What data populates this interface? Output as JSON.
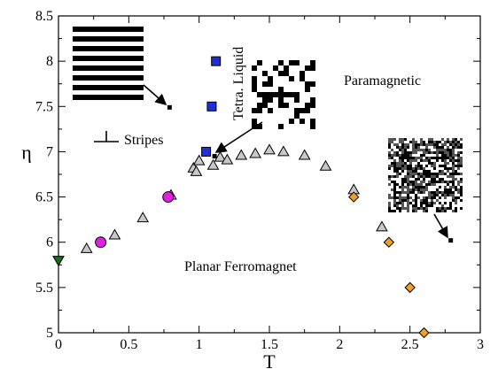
{
  "chart_data": {
    "type": "scatter",
    "xlabel": "T",
    "ylabel": "η",
    "xlim": [
      0,
      3
    ],
    "ylim": [
      5,
      8.5
    ],
    "x_ticks": [
      "0",
      "0.5",
      "1",
      "1.5",
      "2",
      "2.5",
      "3"
    ],
    "y_ticks": [
      "5",
      "5.5",
      "6",
      "6.5",
      "7",
      "7.5",
      "8",
      "8.5"
    ],
    "grid": false,
    "legend": "none",
    "annotations": {
      "paramagnetic": "Paramagnetic",
      "planar": "Planar Ferromagnet",
      "stripes": "Stripes",
      "tetra_liquid": "Tetra. Liquid"
    },
    "series": [
      {
        "marker": "triangle",
        "color": "#c8c8c8",
        "points": [
          {
            "x": 0.2,
            "y": 5.93
          },
          {
            "x": 0.4,
            "y": 6.08
          },
          {
            "x": 0.6,
            "y": 6.27
          },
          {
            "x": 0.8,
            "y": 6.52
          },
          {
            "x": 0.96,
            "y": 6.82
          },
          {
            "x": 0.98,
            "y": 6.78
          },
          {
            "x": 1.0,
            "y": 6.9
          },
          {
            "x": 1.1,
            "y": 6.85
          },
          {
            "x": 1.15,
            "y": 6.94
          },
          {
            "x": 1.2,
            "y": 6.91
          },
          {
            "x": 1.3,
            "y": 6.96
          },
          {
            "x": 1.4,
            "y": 6.98
          },
          {
            "x": 1.5,
            "y": 7.02
          },
          {
            "x": 1.6,
            "y": 7.0
          },
          {
            "x": 1.75,
            "y": 6.96
          },
          {
            "x": 1.9,
            "y": 6.84
          },
          {
            "x": 2.1,
            "y": 6.58
          },
          {
            "x": 2.3,
            "y": 6.17
          }
        ]
      },
      {
        "marker": "square",
        "color": "#1f2fd6",
        "points": [
          {
            "x": 1.05,
            "y": 7.0
          },
          {
            "x": 1.09,
            "y": 7.5
          },
          {
            "x": 1.12,
            "y": 8.0
          }
        ]
      },
      {
        "marker": "circle",
        "color": "#e020e0",
        "points": [
          {
            "x": 0.3,
            "y": 6.0
          },
          {
            "x": 0.78,
            "y": 6.5
          }
        ]
      },
      {
        "marker": "diamond",
        "color": "#f0a020",
        "points": [
          {
            "x": 2.1,
            "y": 6.5
          },
          {
            "x": 2.35,
            "y": 6.0
          },
          {
            "x": 2.5,
            "y": 5.5
          },
          {
            "x": 2.6,
            "y": 5.0
          }
        ]
      },
      {
        "marker": "triangle-down",
        "color": "#1a6b1a",
        "points": [
          {
            "x": 0.0,
            "y": 5.8
          }
        ]
      },
      {
        "marker": "small-square",
        "color": "#000000",
        "points": [
          {
            "x": 0.79,
            "y": 7.49
          },
          {
            "x": 1.11,
            "y": 6.95
          },
          {
            "x": 2.79,
            "y": 6.02
          }
        ]
      }
    ]
  }
}
